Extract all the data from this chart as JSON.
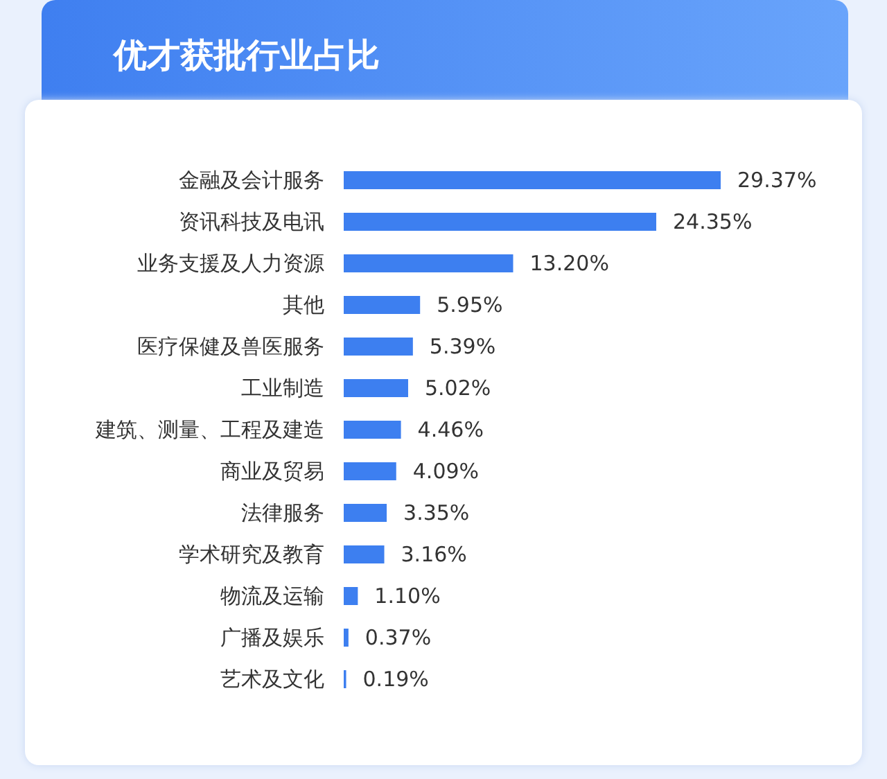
{
  "chart_data": {
    "type": "bar",
    "orientation": "horizontal",
    "title": "优才获批行业占比",
    "categories": [
      "金融及会计服务",
      "资讯科技及电讯",
      "业务支援及人力资源",
      "其他",
      "医疗保健及兽医服务",
      "工业制造",
      "建筑、测量、工程及建造",
      "商业及贸易",
      "法律服务",
      "学术研究及教育",
      "物流及运输",
      "广播及娱乐",
      "艺术及文化"
    ],
    "values": [
      29.37,
      24.35,
      13.2,
      5.95,
      5.39,
      5.02,
      4.46,
      4.09,
      3.35,
      3.16,
      1.1,
      0.37,
      0.19
    ],
    "value_labels": [
      "29.37%",
      "24.35%",
      "13.20%",
      "5.95%",
      "5.39%",
      "5.02%",
      "4.46%",
      "4.09%",
      "3.35%",
      "3.16%",
      "1.10%",
      "0.37%",
      "0.19%"
    ],
    "color": "#3d7ff0"
  }
}
